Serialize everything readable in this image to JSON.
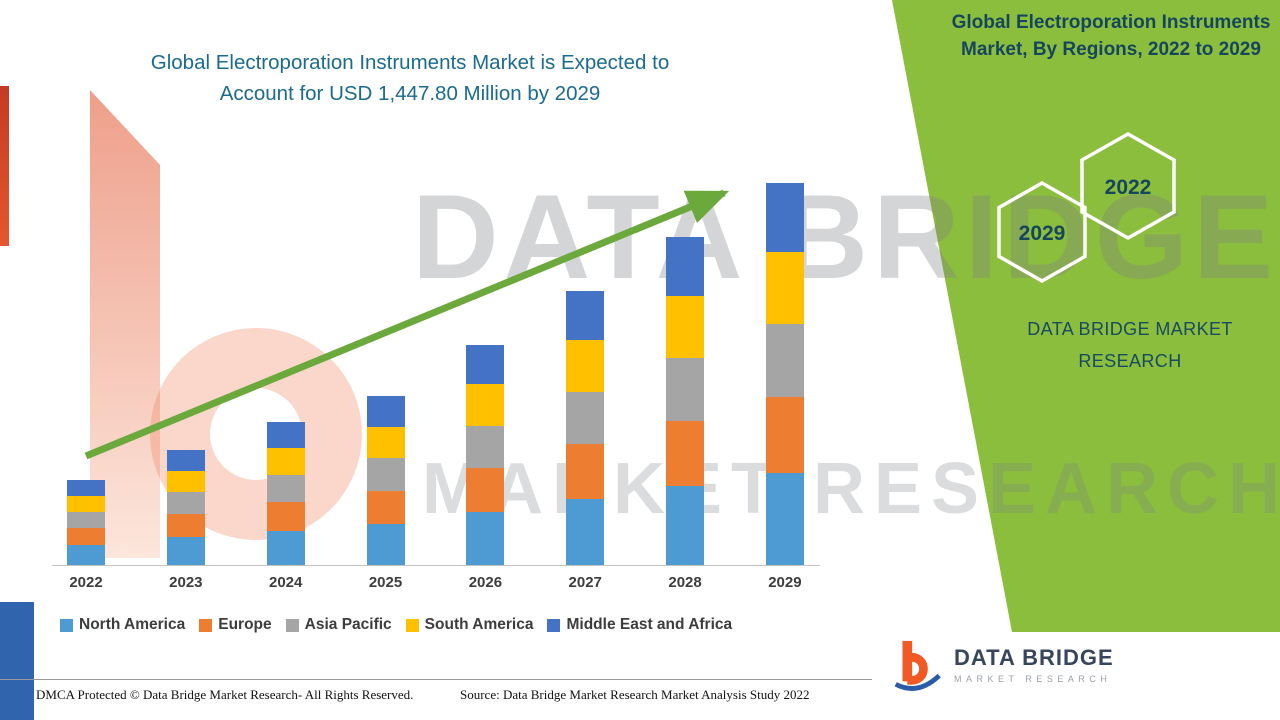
{
  "header": {
    "title_line1": "Global Electroporation Instruments Market is Expected to",
    "title_line2": "Account for USD 1,447.80 Million by 2029"
  },
  "panel": {
    "bg_color": "#8CBE3D",
    "title_line1": "Global Electroporation Instruments",
    "title_line2": "Market, By Regions, 2022 to 2029",
    "hex_year_back": "2022",
    "hex_year_front": "2029",
    "brand_line1": "DATA BRIDGE MARKET",
    "brand_line2": "RESEARCH"
  },
  "watermark": {
    "line1": "DATA BRIDGE",
    "line2": "MARKET RESEARCH"
  },
  "footer": {
    "dmca": "DMCA Protected © Data Bridge Market Research- All Rights Reserved.",
    "source": "Source: Data Bridge Market Research Market Analysis Study 2022"
  },
  "logo": {
    "name": "DATA BRIDGE",
    "subtitle": "MARKET RESEARCH"
  },
  "chart_data": {
    "type": "bar",
    "stacked": true,
    "title": "Global Electroporation Instruments Market is Expected to Account for USD 1,447.80 Million by 2029",
    "units": "USD Million",
    "categories": [
      "2022",
      "2023",
      "2024",
      "2025",
      "2026",
      "2027",
      "2028",
      "2029"
    ],
    "series": [
      {
        "name": "North America",
        "color": "#4E9BD4",
        "values": [
          77,
          105,
          130,
          154,
          200,
          249,
          298,
          347.8
        ]
      },
      {
        "name": "Europe",
        "color": "#ED7D31",
        "values": [
          64,
          87,
          108,
          128,
          167,
          208,
          249,
          290
        ]
      },
      {
        "name": "Asia Pacific",
        "color": "#A5A5A5",
        "values": [
          61,
          83,
          103,
          122,
          158,
          197,
          236,
          275
        ]
      },
      {
        "name": "South America",
        "color": "#FFC000",
        "values": [
          61,
          83,
          103,
          121,
          159,
          197,
          236,
          275
        ]
      },
      {
        "name": "Middle East and Africa",
        "color": "#4472C4",
        "values": [
          59,
          78,
          98,
          115,
          150,
          187,
          224,
          260
        ]
      }
    ],
    "totals": [
      322,
      436,
      542,
      640,
      834,
      1038,
      1243,
      1447.8
    ],
    "ylim": [
      0,
      1500
    ],
    "grid": false,
    "legend_position": "bottom",
    "annotations": [
      "upward green trend arrow from 2022 to 2029"
    ]
  }
}
